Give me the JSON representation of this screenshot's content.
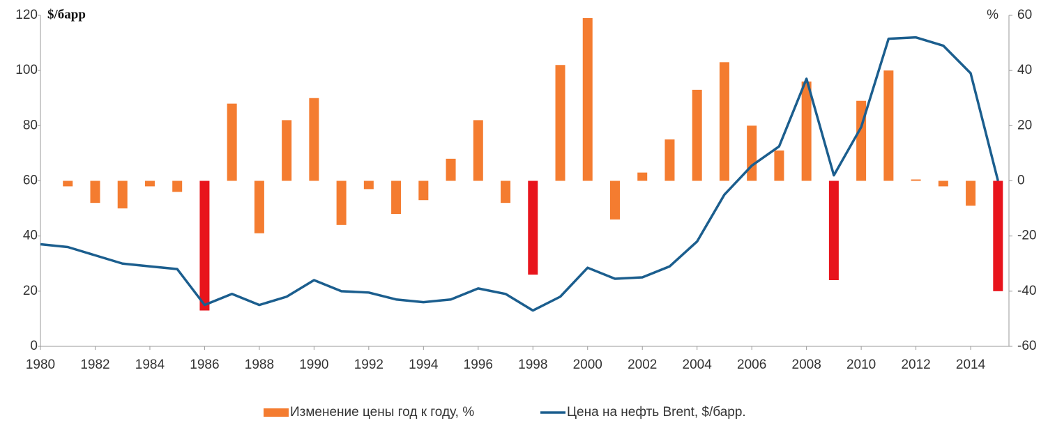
{
  "chart_data": {
    "type": "bar_line",
    "y_label": "$/барр",
    "y2_label": "%",
    "x": [
      1980,
      1981,
      1982,
      1983,
      1984,
      1985,
      1986,
      1987,
      1988,
      1989,
      1990,
      1991,
      1992,
      1993,
      1994,
      1995,
      1996,
      1997,
      1998,
      1999,
      2000,
      2001,
      2002,
      2003,
      2004,
      2005,
      2006,
      2007,
      2008,
      2009,
      2010,
      2011,
      2012,
      2013,
      2014,
      2015
    ],
    "xlim": [
      1980,
      2015.4
    ],
    "xticks": [
      1980,
      1982,
      1984,
      1986,
      1988,
      1990,
      1992,
      1994,
      1996,
      1998,
      2000,
      2002,
      2004,
      2006,
      2008,
      2010,
      2012,
      2014
    ],
    "ylim": [
      0,
      120
    ],
    "yticks": [
      0,
      20,
      40,
      60,
      80,
      100,
      120
    ],
    "y2lim": [
      -60,
      60
    ],
    "y2ticks": [
      -60,
      -40,
      -20,
      0,
      20,
      40,
      60
    ],
    "series": [
      {
        "name": "Изменение цены год к году, %",
        "kind": "bar",
        "axis": "y2",
        "color": "#f47c30",
        "colors": [
          null,
          "#f47c30",
          "#f47c30",
          "#f47c30",
          "#f47c30",
          "#f47c30",
          "#e8141c",
          "#f47c30",
          "#f47c30",
          "#f47c30",
          "#f47c30",
          "#f47c30",
          "#f47c30",
          "#f47c30",
          "#f47c30",
          "#f47c30",
          "#f47c30",
          "#f47c30",
          "#e8141c",
          "#f47c30",
          "#f47c30",
          "#f47c30",
          "#f47c30",
          "#f47c30",
          "#f47c30",
          "#f47c30",
          "#f47c30",
          "#f47c30",
          "#f47c30",
          "#e8141c",
          "#f47c30",
          "#f47c30",
          "#f47c30",
          "#f47c30",
          "#f47c30",
          "#e8141c"
        ],
        "values": [
          null,
          -2,
          -8,
          -10,
          -2,
          -4,
          -47,
          28,
          -19,
          22,
          30,
          -16,
          -3,
          -12,
          -7,
          8,
          22,
          -8,
          -34,
          42,
          59,
          -14,
          3,
          15,
          33,
          43,
          20,
          11,
          36,
          -36,
          29,
          40,
          0.5,
          -2,
          -9,
          -40
        ]
      },
      {
        "name": "Цена на нефть Brent, $/барр.",
        "kind": "line",
        "color": "#1b5e8e",
        "values": [
          37,
          36,
          33,
          30,
          29,
          28,
          15,
          19,
          15,
          18,
          24,
          20,
          19.5,
          17,
          16,
          17,
          21,
          19,
          13,
          18,
          28.5,
          24.5,
          25,
          29,
          38,
          55,
          65.5,
          72.5,
          97,
          62,
          79.5,
          111.5,
          112,
          109,
          99,
          60
        ]
      }
    ]
  }
}
